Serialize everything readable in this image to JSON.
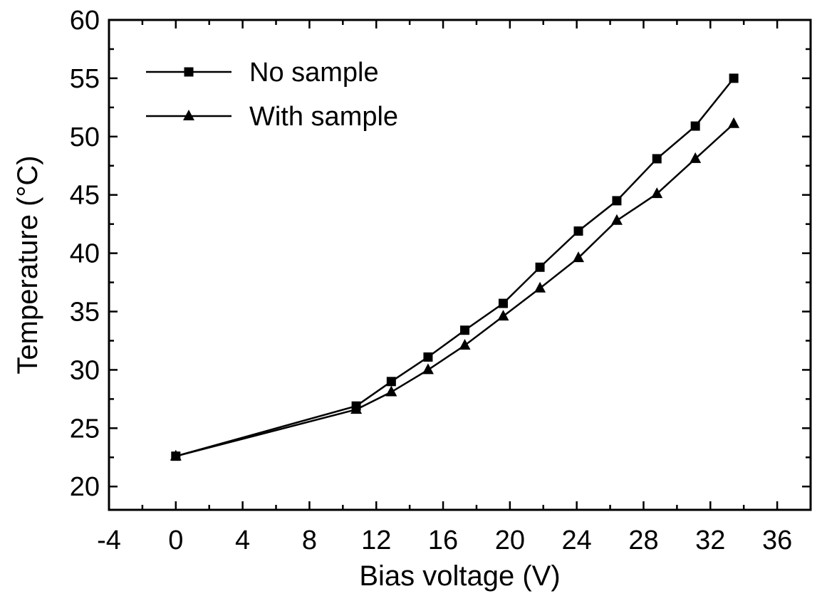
{
  "chart_data": {
    "type": "line",
    "title": "",
    "xlabel": "Bias voltage (V)",
    "ylabel": "Temperature (°C)",
    "xlim": [
      -4,
      38
    ],
    "ylim": [
      18,
      60
    ],
    "x_ticks": [
      -4,
      0,
      4,
      8,
      12,
      16,
      20,
      24,
      28,
      32,
      36
    ],
    "y_ticks": [
      20,
      25,
      30,
      35,
      40,
      45,
      50,
      55,
      60
    ],
    "grid": false,
    "legend_position": "top-left",
    "series": [
      {
        "name": "No sample",
        "marker": "square",
        "color": "#000000",
        "points": [
          {
            "x": 0,
            "y": 22.6
          },
          {
            "x": 10.8,
            "y": 26.9
          },
          {
            "x": 12.9,
            "y": 29.0
          },
          {
            "x": 15.1,
            "y": 31.1
          },
          {
            "x": 17.3,
            "y": 33.4
          },
          {
            "x": 19.6,
            "y": 35.7
          },
          {
            "x": 21.8,
            "y": 38.8
          },
          {
            "x": 24.1,
            "y": 41.9
          },
          {
            "x": 26.4,
            "y": 44.5
          },
          {
            "x": 28.8,
            "y": 48.1
          },
          {
            "x": 31.1,
            "y": 50.9
          },
          {
            "x": 33.4,
            "y": 55.0
          }
        ]
      },
      {
        "name": "With sample",
        "marker": "triangle",
        "color": "#000000",
        "points": [
          {
            "x": 0,
            "y": 22.6
          },
          {
            "x": 10.8,
            "y": 26.6
          },
          {
            "x": 12.9,
            "y": 28.1
          },
          {
            "x": 15.1,
            "y": 30.0
          },
          {
            "x": 17.3,
            "y": 32.1
          },
          {
            "x": 19.6,
            "y": 34.6
          },
          {
            "x": 21.8,
            "y": 37.0
          },
          {
            "x": 24.1,
            "y": 39.6
          },
          {
            "x": 26.4,
            "y": 42.8
          },
          {
            "x": 28.8,
            "y": 45.1
          },
          {
            "x": 31.1,
            "y": 48.1
          },
          {
            "x": 33.4,
            "y": 51.1
          }
        ]
      }
    ]
  }
}
